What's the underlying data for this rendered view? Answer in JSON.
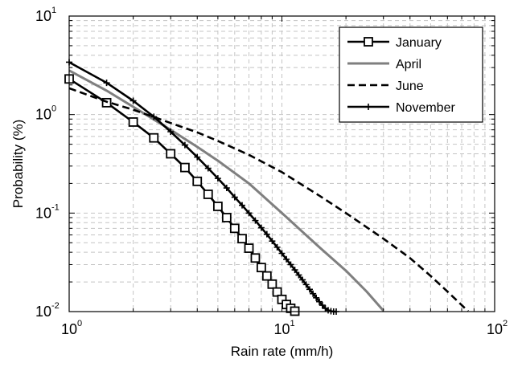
{
  "chart_data": {
    "type": "line",
    "x_scale": "log",
    "y_scale": "log",
    "xlim": [
      1,
      100
    ],
    "ylim": [
      0.01,
      10
    ],
    "grid": true,
    "xlabel": "Rain rate (mm/h)",
    "ylabel": "Probability (%)",
    "legend_position": "top-right",
    "x_ticks": [
      {
        "base": "10",
        "exp": "0",
        "value": 1
      },
      {
        "base": "10",
        "exp": "1",
        "value": 10
      },
      {
        "base": "10",
        "exp": "2",
        "value": 100
      }
    ],
    "y_ticks": [
      {
        "base": "10",
        "exp": "-2",
        "value": 0.01
      },
      {
        "base": "10",
        "exp": "-1",
        "value": 0.1
      },
      {
        "base": "10",
        "exp": "0",
        "value": 1
      },
      {
        "base": "10",
        "exp": "1",
        "value": 10
      }
    ],
    "series": [
      {
        "name": "January",
        "style": "solid-square-markers",
        "color": "#000000",
        "x": [
          1,
          1.5,
          2,
          2.5,
          3,
          3.5,
          4,
          4.5,
          5,
          5.5,
          6,
          6.5,
          7,
          7.5,
          8,
          8.5,
          9,
          9.5,
          10,
          10.5,
          11,
          11.5
        ],
        "y": [
          2.3,
          1.32,
          0.84,
          0.58,
          0.4,
          0.29,
          0.21,
          0.155,
          0.117,
          0.09,
          0.07,
          0.055,
          0.044,
          0.035,
          0.028,
          0.023,
          0.019,
          0.0158,
          0.0133,
          0.0118,
          0.0108,
          0.0101
        ]
      },
      {
        "name": "April",
        "style": "solid-gray",
        "color": "#7f7f7f",
        "x": [
          1,
          1.5,
          2,
          3,
          4,
          5,
          7,
          10,
          15,
          20,
          25,
          30
        ],
        "y": [
          2.8,
          1.75,
          1.2,
          0.7,
          0.47,
          0.34,
          0.2,
          0.1,
          0.045,
          0.026,
          0.016,
          0.0102
        ]
      },
      {
        "name": "June",
        "style": "dashed",
        "color": "#000000",
        "x": [
          1,
          1.5,
          2,
          3,
          4,
          5,
          7,
          10,
          15,
          20,
          30,
          40,
          50,
          60,
          75
        ],
        "y": [
          1.85,
          1.35,
          1.12,
          0.82,
          0.66,
          0.54,
          0.39,
          0.26,
          0.15,
          0.1,
          0.055,
          0.035,
          0.023,
          0.016,
          0.0101
        ]
      },
      {
        "name": "November",
        "style": "solid-plus-markers",
        "color": "#000000",
        "x": [
          1,
          1.5,
          2,
          2.5,
          3,
          3.5,
          4,
          4.5,
          5,
          5.5,
          6,
          6.5,
          7,
          7.5,
          8,
          8.5,
          9,
          9.5,
          10,
          10.5,
          11,
          11.5,
          12,
          12.5,
          13,
          13.5,
          14,
          14.5,
          15,
          15.5,
          16,
          16.5,
          17,
          17.5,
          18
        ],
        "y": [
          3.4,
          2.1,
          1.38,
          0.95,
          0.67,
          0.49,
          0.37,
          0.285,
          0.225,
          0.18,
          0.145,
          0.12,
          0.1,
          0.084,
          0.071,
          0.061,
          0.052,
          0.045,
          0.039,
          0.034,
          0.03,
          0.0265,
          0.0235,
          0.021,
          0.0188,
          0.0168,
          0.0152,
          0.0138,
          0.0126,
          0.0116,
          0.0108,
          0.0103,
          0.0101,
          0.01,
          0.01
        ]
      }
    ]
  }
}
